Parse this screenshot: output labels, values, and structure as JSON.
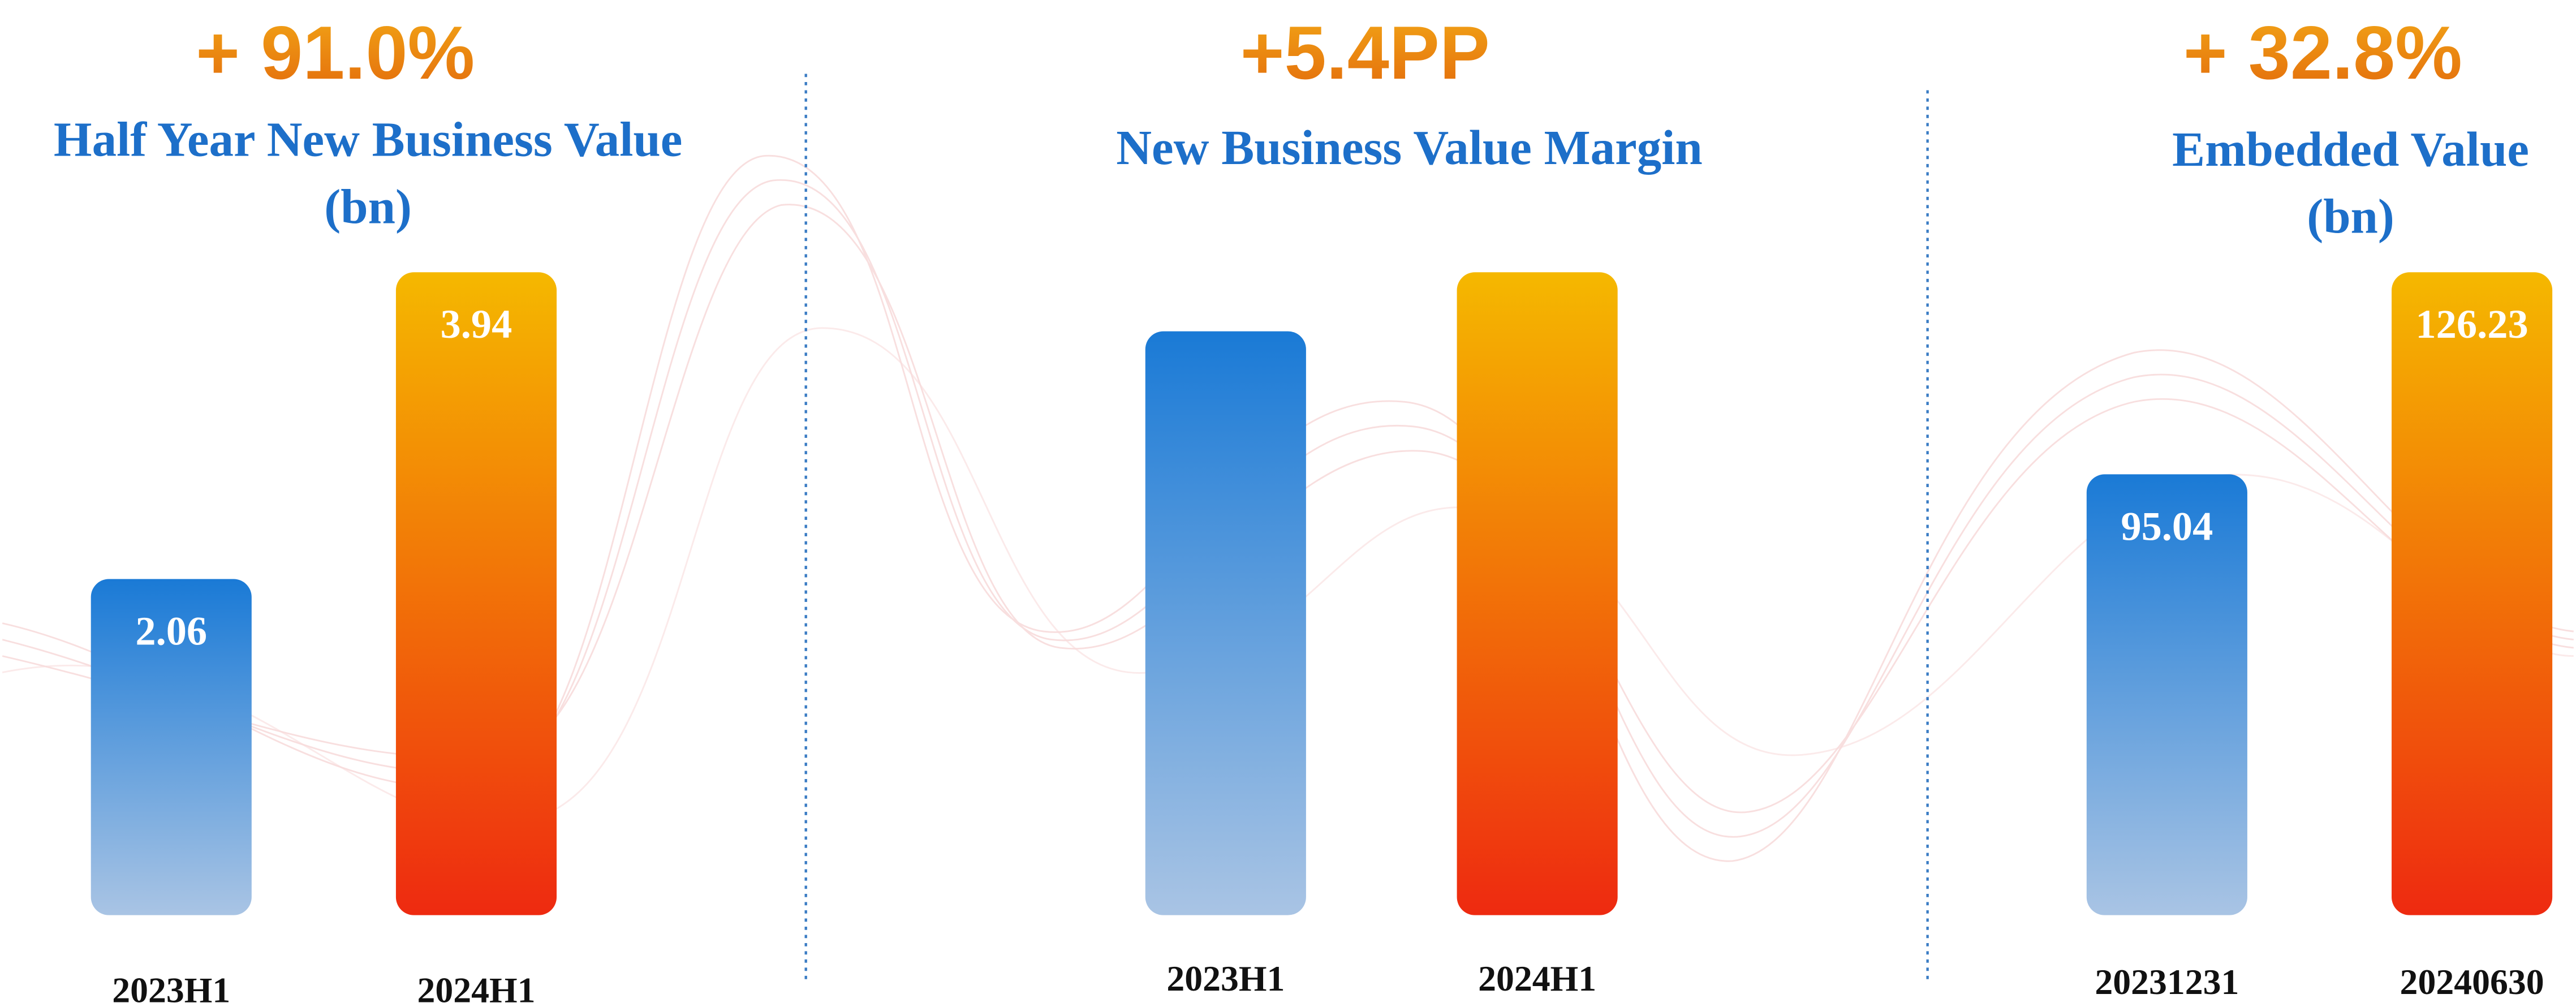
{
  "chart_data": [
    {
      "type": "bar",
      "change": "+ 91.0%",
      "title": "Half Year New Business Value",
      "unit": "(bn)",
      "categories": [
        "2023H1",
        "2024H1"
      ],
      "values": [
        2.06,
        3.94
      ],
      "colors": [
        "#1a7ad6",
        "#f5b800"
      ],
      "ylim": [
        0,
        3.94
      ],
      "data_labels": true
    },
    {
      "type": "bar",
      "change": "+5.4PP",
      "title": "New Business Value Margin",
      "categories": [
        "2023H1",
        "2024H1"
      ],
      "values": [
        53.4,
        58.8
      ],
      "colors": [
        "#1a7ad6",
        "#f5b800"
      ],
      "ylim": [
        0,
        58.8
      ],
      "data_labels": false
    },
    {
      "type": "bar",
      "change": "+ 32.8%",
      "title": "Embedded Value",
      "unit": "(bn)",
      "categories": [
        "20231231",
        "20240630"
      ],
      "values": [
        95.04,
        126.23
      ],
      "colors": [
        "#1a7ad6",
        "#f5b800"
      ],
      "ylim": [
        27,
        126.23
      ],
      "data_labels": true
    }
  ]
}
